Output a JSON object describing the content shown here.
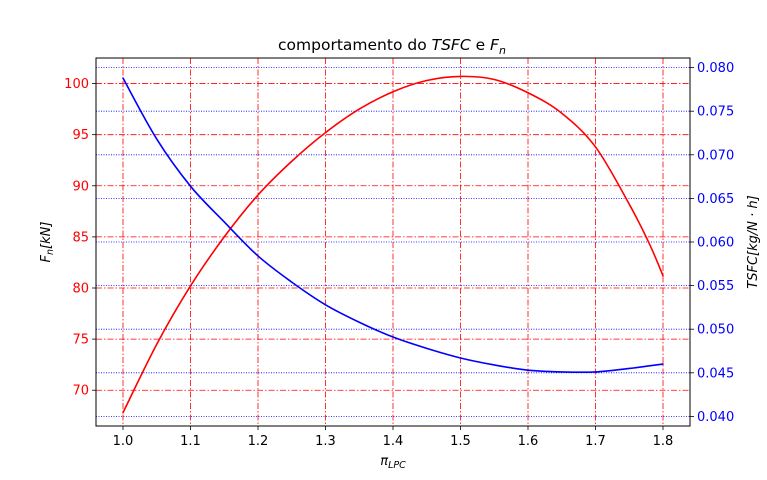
{
  "chart_data": {
    "type": "line",
    "title": {
      "prefix": "comportamento do ",
      "tsfc": "TSFC",
      "middle": " e ",
      "fn_base": "F",
      "fn_sub": "n"
    },
    "xlabel": {
      "base": "π",
      "sub": "LPC"
    },
    "ylabel_left": {
      "base": "F",
      "sub": "n",
      "suffix": "[kN]"
    },
    "ylabel_right": "TSFC[kg/N · h]",
    "xlim": [
      0.96,
      1.84
    ],
    "ylim_left": [
      66.5,
      102.5
    ],
    "ylim_right": [
      0.0389,
      0.0811
    ],
    "x_ticks": [
      "1.0",
      "1.1",
      "1.2",
      "1.3",
      "1.4",
      "1.5",
      "1.6",
      "1.7",
      "1.8"
    ],
    "y_ticks_left": [
      "70",
      "75",
      "80",
      "85",
      "90",
      "95",
      "100"
    ],
    "y_ticks_right": [
      "0.040",
      "0.045",
      "0.050",
      "0.055",
      "0.060",
      "0.065",
      "0.070",
      "0.075",
      "0.080"
    ],
    "grid": {
      "left_axis": "red dash-dot",
      "right_axis": "blue dotted"
    },
    "x": [
      1.0,
      1.05,
      1.1,
      1.15,
      1.2,
      1.25,
      1.3,
      1.35,
      1.4,
      1.45,
      1.5,
      1.55,
      1.6,
      1.65,
      1.7,
      1.75,
      1.78,
      1.8
    ],
    "series": [
      {
        "axis": "left",
        "color": "#ff0000",
        "values": [
          67.8,
          74.5,
          80.2,
          85.0,
          89.1,
          92.4,
          95.2,
          97.5,
          99.2,
          100.3,
          100.7,
          100.4,
          99.1,
          97.1,
          93.8,
          88.2,
          84.3,
          81.2
        ]
      },
      {
        "axis": "right",
        "color": "#0000ff",
        "values": [
          0.0788,
          0.0718,
          0.0664,
          0.0623,
          0.0584,
          0.0554,
          0.0528,
          0.0508,
          0.0491,
          0.0478,
          0.0467,
          0.0459,
          0.0453,
          0.0451,
          0.0451,
          0.0455,
          0.0458,
          0.046
        ]
      }
    ],
    "colors": {
      "left_axis": "#ff0000",
      "right_axis": "#0000ff",
      "axes": "#000000"
    }
  }
}
